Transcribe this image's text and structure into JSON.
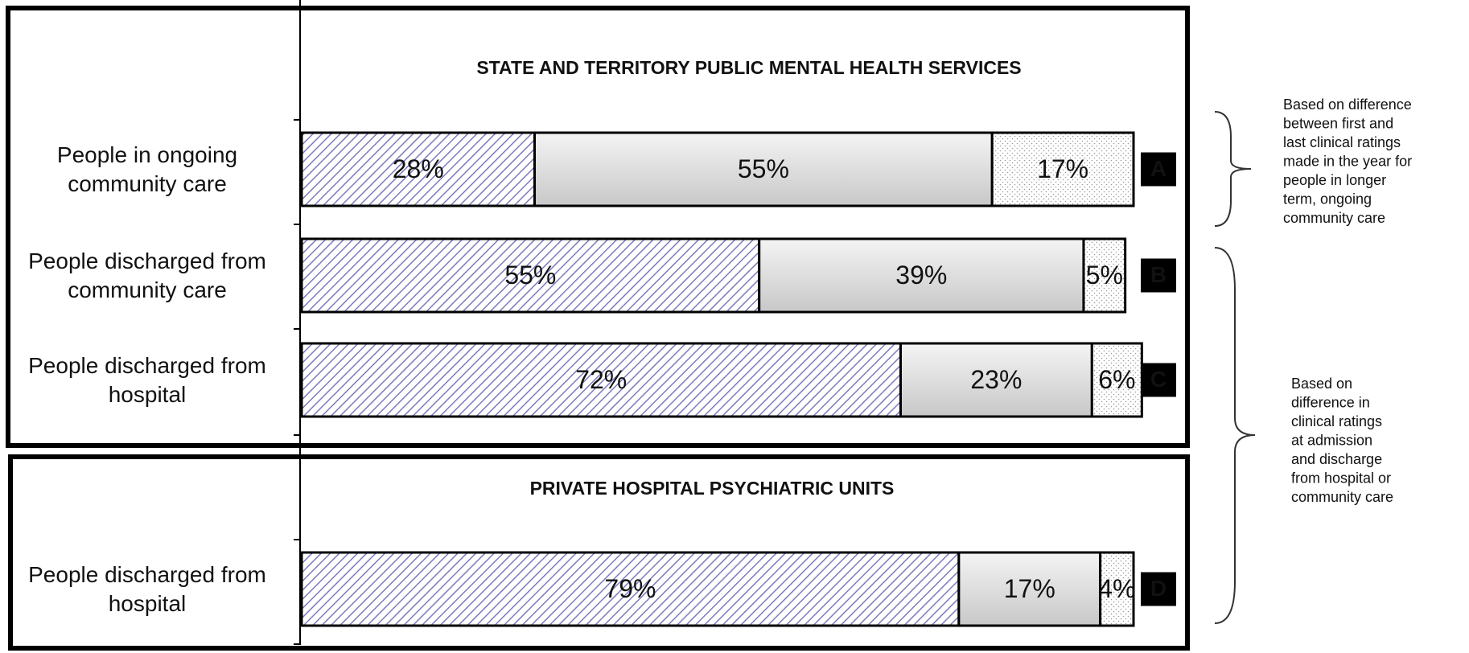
{
  "chart_data": [
    {
      "type": "stacked-bar-horizontal",
      "title": "STATE AND TERRITORY PUBLIC MENTAL HEALTH SERVICES",
      "categories": [
        "People in ongoing community care",
        "People discharged from community care",
        "People discharged from hospital"
      ],
      "tags": [
        "A",
        "B",
        "C"
      ],
      "xlim": [
        0,
        100
      ],
      "series": [
        {
          "color": "#7b7bbd",
          "fill_style": "hatch",
          "values": [
            28,
            55,
            72
          ],
          "value_labels": [
            "28%",
            "55%",
            "72%"
          ]
        },
        {
          "color": "#c8c8c8",
          "fill_style": "gradient",
          "values": [
            55,
            39,
            23
          ],
          "value_labels": [
            "55%",
            "39%",
            "23%"
          ]
        },
        {
          "color": "#9a9a9a",
          "fill_style": "dots",
          "values": [
            17,
            5,
            6
          ],
          "value_labels": [
            "17%",
            "5%",
            "6%"
          ]
        }
      ]
    },
    {
      "type": "stacked-bar-horizontal",
      "title": "PRIVATE HOSPITAL PSYCHIATRIC UNITS",
      "categories": [
        "People discharged from hospital"
      ],
      "tags": [
        "D"
      ],
      "xlim": [
        0,
        100
      ],
      "series": [
        {
          "color": "#7b7bbd",
          "fill_style": "hatch",
          "values": [
            79
          ],
          "value_labels": [
            "79%"
          ]
        },
        {
          "color": "#c8c8c8",
          "fill_style": "gradient",
          "values": [
            17
          ],
          "value_labels": [
            "17%"
          ]
        },
        {
          "color": "#9a9a9a",
          "fill_style": "dots",
          "values": [
            4
          ],
          "value_labels": [
            "4%"
          ]
        }
      ]
    }
  ],
  "annotations": [
    [
      "Based on difference",
      "between first and",
      "last clinical ratings",
      "made in the year for",
      "people in longer",
      "term, ongoing",
      "community care"
    ],
    [
      "Based on",
      "difference in",
      "clinical ratings",
      "at admission",
      "and discharge",
      "from hospital or",
      "community care"
    ]
  ]
}
